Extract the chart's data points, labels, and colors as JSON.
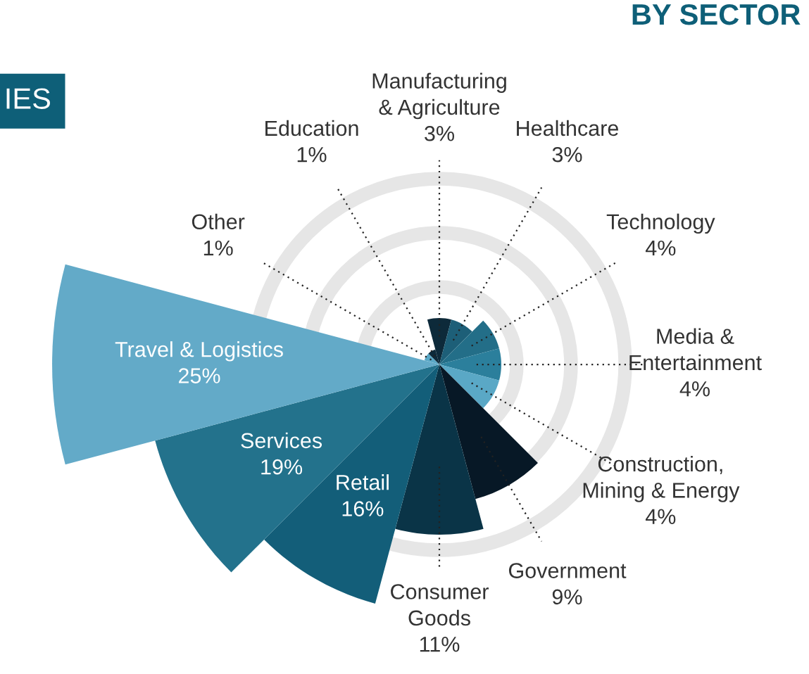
{
  "chart_data": {
    "type": "other",
    "title": "BY SECTOR",
    "annotations": [
      "IES"
    ],
    "categories": [
      "Manufacturing\n& Agriculture",
      "Healthcare",
      "Technology",
      "Media &\nEntertainment",
      "Construction,\nMining & Energy",
      "Government",
      "Consumer\nGoods",
      "Retail",
      "Services",
      "Travel & Logistics",
      "Other",
      "Education"
    ],
    "values": [
      3,
      3,
      4,
      4,
      4,
      9,
      11,
      16,
      19,
      25,
      1,
      1
    ],
    "value_labels": [
      "3%",
      "3%",
      "4%",
      "4%",
      "4%",
      "9%",
      "11%",
      "16%",
      "19%",
      "25%",
      "1%",
      "1%"
    ],
    "colors": [
      "#0d2a3a",
      "#1d5f78",
      "#236e88",
      "#2b7f9c",
      "#5aa8c6",
      "#071826",
      "#0a3447",
      "#135e79",
      "#23728c",
      "#63aac8",
      "#5aa8c6",
      "#0d2a3a"
    ]
  }
}
